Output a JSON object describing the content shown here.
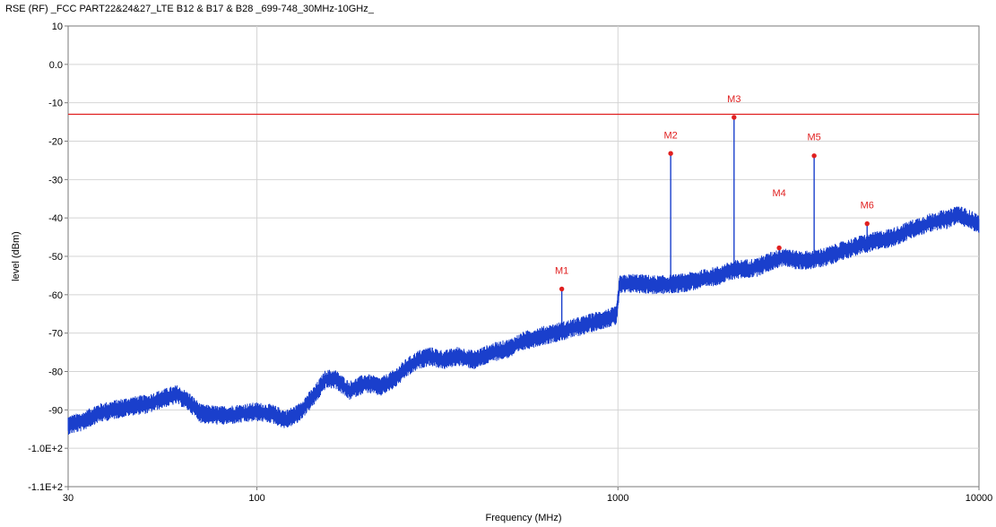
{
  "chart_data": {
    "type": "line",
    "title": "RSE (RF)  _FCC PART22&24&27_LTE B12 & B17 & B28 _699-748_30MHz-10GHz_",
    "xlabel": "Frequency (MHz)",
    "ylabel": "level (dBm)",
    "x_scale": "log",
    "xlim": [
      30,
      10000
    ],
    "ylim": [
      -110,
      10
    ],
    "x_ticks": [
      {
        "value": 30,
        "label": "30"
      },
      {
        "value": 100,
        "label": "100"
      },
      {
        "value": 1000,
        "label": "1000"
      },
      {
        "value": 10000,
        "label": "10000"
      }
    ],
    "y_ticks": [
      {
        "value": 10,
        "label": "10"
      },
      {
        "value": 0,
        "label": "0.0"
      },
      {
        "value": -10,
        "label": "-10"
      },
      {
        "value": -20,
        "label": "-20"
      },
      {
        "value": -30,
        "label": "-30"
      },
      {
        "value": -40,
        "label": "-40"
      },
      {
        "value": -50,
        "label": "-50"
      },
      {
        "value": -60,
        "label": "-60"
      },
      {
        "value": -70,
        "label": "-70"
      },
      {
        "value": -80,
        "label": "-80"
      },
      {
        "value": -90,
        "label": "-90"
      },
      {
        "value": -100,
        "label": "-1.0E+2"
      },
      {
        "value": -110,
        "label": "-1.1E+2"
      }
    ],
    "grid": true,
    "limit_line": {
      "value": -13,
      "color": "#e02020"
    },
    "series": [
      {
        "color": "#1a3fcc",
        "points": [
          [
            30,
            -94
          ],
          [
            33,
            -93
          ],
          [
            36,
            -91
          ],
          [
            40,
            -90
          ],
          [
            45,
            -89
          ],
          [
            50,
            -88.5
          ],
          [
            55,
            -87
          ],
          [
            60,
            -86
          ],
          [
            65,
            -88
          ],
          [
            70,
            -91
          ],
          [
            80,
            -91.5
          ],
          [
            90,
            -91
          ],
          [
            100,
            -90.5
          ],
          [
            110,
            -91
          ],
          [
            120,
            -92.5
          ],
          [
            130,
            -91
          ],
          [
            145,
            -86
          ],
          [
            155,
            -82
          ],
          [
            165,
            -82
          ],
          [
            180,
            -85
          ],
          [
            200,
            -83
          ],
          [
            220,
            -84
          ],
          [
            240,
            -82
          ],
          [
            260,
            -79
          ],
          [
            280,
            -77
          ],
          [
            300,
            -76
          ],
          [
            330,
            -77
          ],
          [
            360,
            -76
          ],
          [
            400,
            -77
          ],
          [
            450,
            -75
          ],
          [
            500,
            -74
          ],
          [
            550,
            -72
          ],
          [
            600,
            -71
          ],
          [
            700,
            -69.5
          ],
          [
            800,
            -68
          ],
          [
            900,
            -66.5
          ],
          [
            990,
            -65.5
          ],
          [
            1010,
            -57.5
          ],
          [
            1100,
            -57
          ],
          [
            1300,
            -57.5
          ],
          [
            1500,
            -57
          ],
          [
            1700,
            -56
          ],
          [
            1900,
            -55
          ],
          [
            2100,
            -53.5
          ],
          [
            2400,
            -53
          ],
          [
            2700,
            -51
          ],
          [
            2900,
            -50
          ],
          [
            3100,
            -51
          ],
          [
            3400,
            -51
          ],
          [
            3800,
            -50
          ],
          [
            4200,
            -48.5
          ],
          [
            4700,
            -47
          ],
          [
            5200,
            -46
          ],
          [
            5800,
            -45
          ],
          [
            6500,
            -43
          ],
          [
            7200,
            -41.5
          ],
          [
            7800,
            -40.5
          ],
          [
            8200,
            -40.5
          ],
          [
            8700,
            -39
          ],
          [
            9200,
            -40
          ],
          [
            10000,
            -41.5
          ]
        ],
        "noise_amplitude_dB": 2.5
      }
    ],
    "spikes": [
      {
        "x": 699,
        "top": -58.5
      },
      {
        "x": 1400,
        "top": -23.2
      },
      {
        "x": 2097,
        "top": -13.8
      },
      {
        "x": 2796,
        "top": -47.8
      },
      {
        "x": 3495,
        "top": -23.8
      },
      {
        "x": 4900,
        "top": -41.5
      }
    ],
    "markers": [
      {
        "label": "M1",
        "x": 699,
        "y": -58.5,
        "label_y": -54.5
      },
      {
        "label": "M2",
        "x": 1400,
        "y": -23.2,
        "label_y": -19.3
      },
      {
        "label": "M3",
        "x": 2097,
        "y": -13.8,
        "label_y": -9.9
      },
      {
        "label": "M4",
        "x": 2796,
        "y": -47.8,
        "label_y": -34.4
      },
      {
        "label": "M5",
        "x": 3495,
        "y": -23.8,
        "label_y": -19.8
      },
      {
        "label": "M6",
        "x": 4900,
        "y": -41.5,
        "label_y": -37.5
      }
    ],
    "marker_color": "#e02020"
  }
}
